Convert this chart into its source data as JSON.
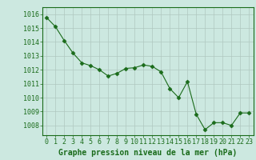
{
  "x": [
    0,
    1,
    2,
    3,
    4,
    5,
    6,
    7,
    8,
    9,
    10,
    11,
    12,
    13,
    14,
    15,
    16,
    17,
    18,
    19,
    20,
    21,
    22,
    23
  ],
  "y": [
    1015.75,
    1015.1,
    1014.1,
    1013.2,
    1012.5,
    1012.3,
    1012.0,
    1011.55,
    1011.75,
    1012.1,
    1012.15,
    1012.35,
    1012.25,
    1011.85,
    1010.65,
    1010.0,
    1011.15,
    1008.8,
    1007.7,
    1008.2,
    1008.2,
    1008.0,
    1008.9,
    1008.9
  ],
  "line_color": "#1a6b1a",
  "marker": "D",
  "marker_size": 2.5,
  "bg_color": "#cce8e0",
  "grid_color": "#b0c8c0",
  "xlabel": "Graphe pression niveau de la mer (hPa)",
  "xlabel_color": "#1a6b1a",
  "xlabel_fontsize": 7,
  "tick_color": "#1a6b1a",
  "tick_fontsize": 6,
  "ylim": [
    1007.3,
    1016.5
  ],
  "yticks": [
    1008,
    1009,
    1010,
    1011,
    1012,
    1013,
    1014,
    1015,
    1016
  ],
  "xlim": [
    -0.5,
    23.5
  ],
  "xticks": [
    0,
    1,
    2,
    3,
    4,
    5,
    6,
    7,
    8,
    9,
    10,
    11,
    12,
    13,
    14,
    15,
    16,
    17,
    18,
    19,
    20,
    21,
    22,
    23
  ]
}
